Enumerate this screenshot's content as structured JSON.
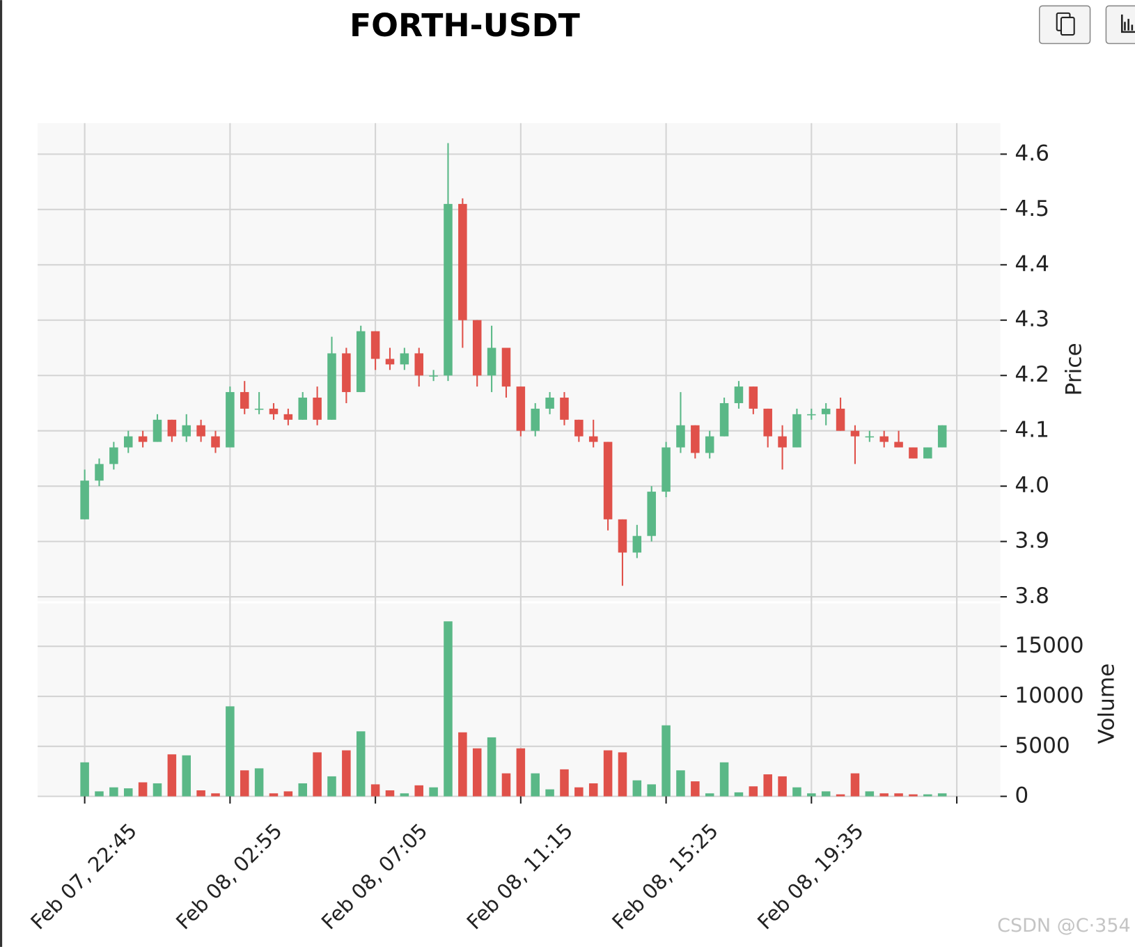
{
  "chart_data": {
    "type": "candlestick",
    "title": "FORTH-USDT",
    "categories": [
      "Feb 07, 22:45",
      null,
      null,
      null,
      null,
      null,
      null,
      null,
      null,
      null,
      "Feb 08, 02:55",
      null,
      null,
      null,
      null,
      null,
      null,
      null,
      null,
      null,
      "Feb 08, 07:05",
      null,
      null,
      null,
      null,
      null,
      null,
      null,
      null,
      null,
      "Feb 08, 11:15",
      null,
      null,
      null,
      null,
      null,
      null,
      null,
      null,
      null,
      "Feb 08, 15:25",
      null,
      null,
      null,
      null,
      null,
      null,
      null,
      null,
      null,
      "Feb 08, 19:35",
      null,
      null,
      null,
      null,
      null,
      null,
      null,
      null,
      null
    ],
    "open": [
      3.94,
      4.01,
      4.04,
      4.07,
      4.09,
      4.08,
      4.12,
      4.09,
      4.11,
      4.09,
      4.07,
      4.17,
      4.14,
      4.14,
      4.13,
      4.12,
      4.16,
      4.12,
      4.24,
      4.17,
      4.28,
      4.23,
      4.22,
      4.24,
      4.2,
      4.2,
      4.51,
      4.3,
      4.2,
      4.25,
      4.18,
      4.1,
      4.14,
      4.16,
      4.12,
      4.09,
      4.08,
      3.94,
      3.88,
      3.91,
      3.99,
      4.07,
      4.11,
      4.06,
      4.09,
      4.15,
      4.18,
      4.14,
      4.09,
      4.07,
      4.13,
      4.13,
      4.14,
      4.1,
      4.09,
      4.09,
      4.08,
      4.07,
      4.05,
      4.07
    ],
    "high": [
      4.03,
      4.05,
      4.08,
      4.1,
      4.1,
      4.13,
      4.12,
      4.13,
      4.12,
      4.1,
      4.18,
      4.19,
      4.17,
      4.15,
      4.14,
      4.17,
      4.18,
      4.27,
      4.25,
      4.29,
      4.28,
      4.25,
      4.25,
      4.25,
      4.21,
      4.62,
      4.52,
      4.3,
      4.29,
      4.25,
      4.18,
      4.15,
      4.17,
      4.17,
      4.12,
      4.12,
      4.08,
      3.94,
      3.93,
      4.0,
      4.08,
      4.17,
      4.11,
      4.1,
      4.16,
      4.19,
      4.18,
      4.14,
      4.11,
      4.14,
      4.14,
      4.15,
      4.16,
      4.11,
      4.1,
      4.1,
      4.1,
      4.07,
      4.07,
      4.11
    ],
    "low": [
      3.94,
      4.0,
      4.03,
      4.06,
      4.07,
      4.08,
      4.08,
      4.08,
      4.08,
      4.06,
      4.07,
      4.13,
      4.13,
      4.12,
      4.11,
      4.12,
      4.11,
      4.12,
      4.15,
      4.17,
      4.21,
      4.21,
      4.21,
      4.18,
      4.19,
      4.19,
      4.25,
      4.18,
      4.17,
      4.16,
      4.09,
      4.09,
      4.13,
      4.11,
      4.08,
      4.07,
      3.92,
      3.82,
      3.87,
      3.9,
      3.98,
      4.06,
      4.05,
      4.05,
      4.09,
      4.14,
      4.13,
      4.07,
      4.03,
      4.07,
      4.12,
      4.11,
      4.1,
      4.04,
      4.08,
      4.07,
      4.07,
      4.05,
      4.05,
      4.07
    ],
    "close": [
      4.01,
      4.04,
      4.07,
      4.09,
      4.08,
      4.12,
      4.09,
      4.11,
      4.09,
      4.07,
      4.17,
      4.14,
      4.14,
      4.13,
      4.12,
      4.16,
      4.12,
      4.24,
      4.17,
      4.28,
      4.23,
      4.22,
      4.24,
      4.2,
      4.2,
      4.51,
      4.3,
      4.2,
      4.25,
      4.18,
      4.1,
      4.14,
      4.16,
      4.12,
      4.09,
      4.08,
      3.94,
      3.88,
      3.91,
      3.99,
      4.07,
      4.11,
      4.06,
      4.09,
      4.15,
      4.18,
      4.14,
      4.09,
      4.07,
      4.13,
      4.13,
      4.14,
      4.1,
      4.09,
      4.09,
      4.08,
      4.07,
      4.05,
      4.07,
      4.11
    ],
    "volume": [
      3400,
      500,
      900,
      800,
      1400,
      1300,
      4200,
      4100,
      600,
      300,
      9000,
      2600,
      2800,
      300,
      500,
      1300,
      4400,
      2000,
      4600,
      6500,
      1200,
      600,
      300,
      1100,
      900,
      17500,
      6400,
      4800,
      5900,
      2300,
      4800,
      2300,
      700,
      2700,
      900,
      1300,
      4600,
      4400,
      1600,
      1200,
      7100,
      2600,
      1500,
      300,
      3400,
      400,
      1000,
      2200,
      2000,
      900,
      300,
      500,
      200,
      2300,
      500,
      300,
      300,
      200,
      200,
      300
    ],
    "up_color": "#5ab887",
    "down_color": "#e0514a",
    "ylabel": "Price",
    "ylim": [
      3.79,
      4.656
    ],
    "yticks": [
      3.8,
      3.9,
      {
        "value": 4.0,
        "label": "4.0"
      },
      4.1,
      4.2,
      4.3,
      4.4,
      4.5,
      4.6
    ],
    "volume_label": "Volume",
    "volume_ylim": [
      0,
      19400
    ],
    "volume_yticks": [
      0,
      5000,
      10000,
      15000
    ],
    "grid": true
  },
  "watermark": "CSDN @C·354"
}
